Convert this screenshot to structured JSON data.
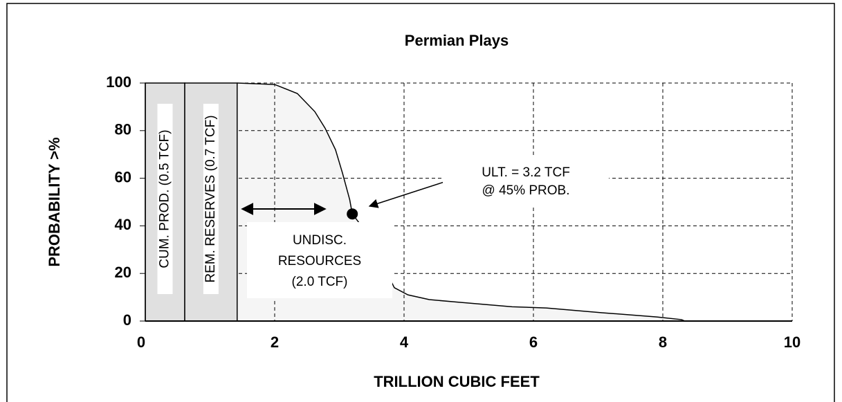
{
  "chart_data": {
    "type": "line",
    "title": "Permian Plays",
    "x_label": "TRILLION CUBIC FEET",
    "y_label": "PROBABILITY >%",
    "xlim": [
      0,
      10
    ],
    "ylim": [
      0,
      100
    ],
    "xticks": [
      0,
      2,
      4,
      6,
      8,
      10
    ],
    "yticks": [
      0,
      20,
      40,
      60,
      80,
      100
    ],
    "grid": true,
    "x": [
      1.42,
      2.0,
      2.35,
      2.62,
      2.78,
      2.94,
      3.05,
      3.16,
      3.2,
      3.37,
      3.53,
      3.74,
      3.85,
      4.06,
      4.39,
      4.81,
      5.67,
      6.2,
      7.06,
      7.91,
      8.29,
      8.34
    ],
    "series": [
      {
        "color": "#000000",
        "values": [
          100,
          99.4,
          95.6,
          88,
          81,
          72,
          62,
          51,
          45,
          39,
          30,
          20,
          14,
          11,
          9,
          8,
          6,
          5.5,
          3.5,
          1.7,
          0.6,
          0
        ]
      }
    ],
    "bars": [
      {
        "label": "CUM. PROD. (0.5 TCF)",
        "x0": 0,
        "x1": 0.61,
        "value": 100,
        "color": "#e0e0e0"
      },
      {
        "label": "REM. RESERVES (0.7 TCF)",
        "x0": 0.61,
        "x1": 1.42,
        "value": 100,
        "color": "#e0e0e0"
      }
    ],
    "marker": {
      "x": 3.2,
      "y": 45
    },
    "annotations": [
      {
        "lines": [
          "ULT. = 3.2 TCF",
          "@ 45% PROB."
        ]
      },
      {
        "lines": [
          "UNDISC.",
          "RESOURCES",
          "(2.0 TCF)"
        ]
      }
    ]
  }
}
